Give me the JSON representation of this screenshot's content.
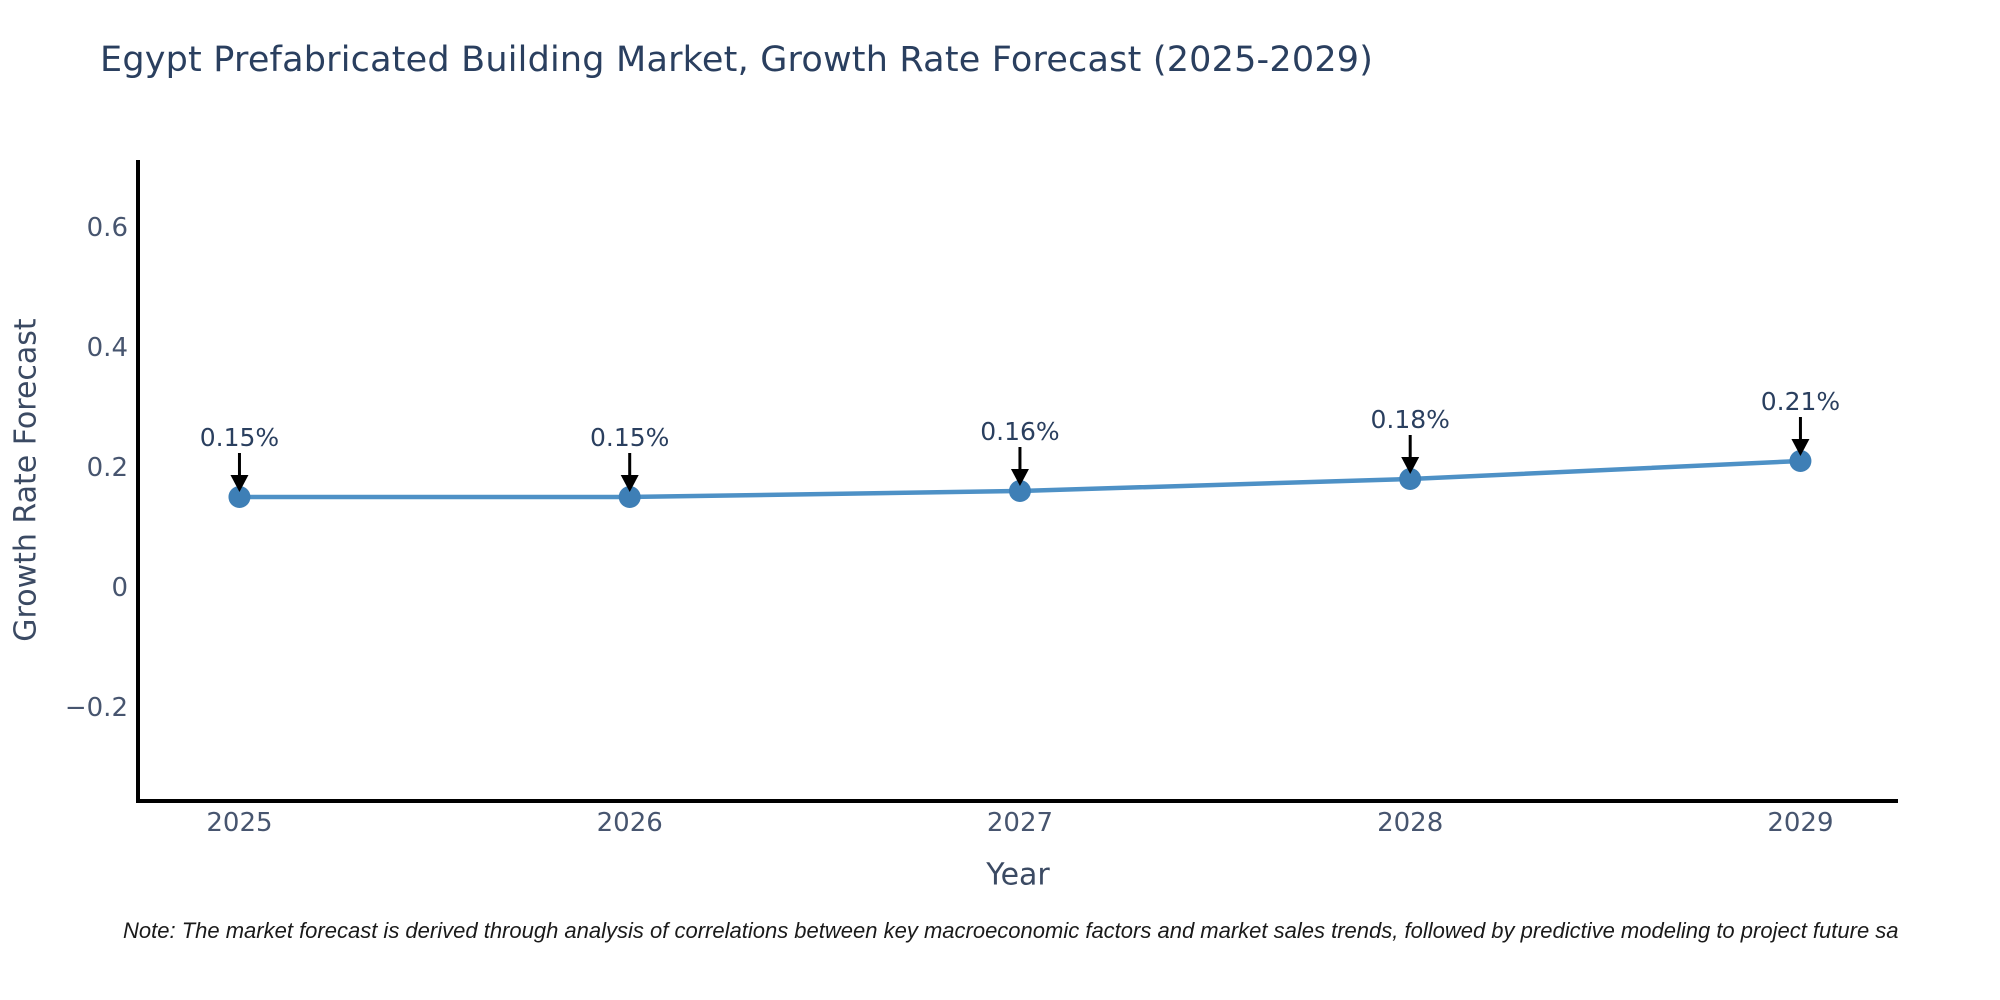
{
  "note": "Note: The market forecast is derived through analysis of correlations between key macroeconomic factors and market sales trends, followed by predictive modeling to project future sa",
  "colors": {
    "line": "#4e91c6",
    "marker": "#3e7fb6",
    "title_text": "#2a3f5f",
    "axis_title_text": "#3b4a63",
    "tick_text": "#47556f",
    "annotation_text": "#2a3f5f",
    "arrow": "#000000",
    "axis_spine": "#000000",
    "note_text": "#1a1a1a"
  },
  "chart_data": {
    "type": "line",
    "title": "Egypt Prefabricated Building Market, Growth Rate Forecast (2025-2029)",
    "xlabel": "Year",
    "ylabel": "Growth Rate Forecast",
    "x": [
      2025,
      2026,
      2027,
      2028,
      2029
    ],
    "values": [
      0.15,
      0.15,
      0.16,
      0.18,
      0.21
    ],
    "point_labels": [
      "0.15%",
      "0.15%",
      "0.16%",
      "0.18%",
      "0.21%"
    ],
    "x_tick_labels": [
      "2025",
      "2026",
      "2027",
      "2028",
      "2029"
    ],
    "y_ticks": [
      {
        "value": -0.2,
        "label": "−0.2"
      },
      {
        "value": 0,
        "label": "0"
      },
      {
        "value": 0.2,
        "label": "0.2"
      },
      {
        "value": 0.4,
        "label": "0.4"
      },
      {
        "value": 0.6,
        "label": "0.6"
      }
    ],
    "xlim": [
      2024.74,
      2029.25
    ],
    "ylim": [
      -0.357,
      0.712
    ],
    "grid": false,
    "legend": false,
    "marker_style": "circle",
    "annotations_have_arrows": true
  }
}
